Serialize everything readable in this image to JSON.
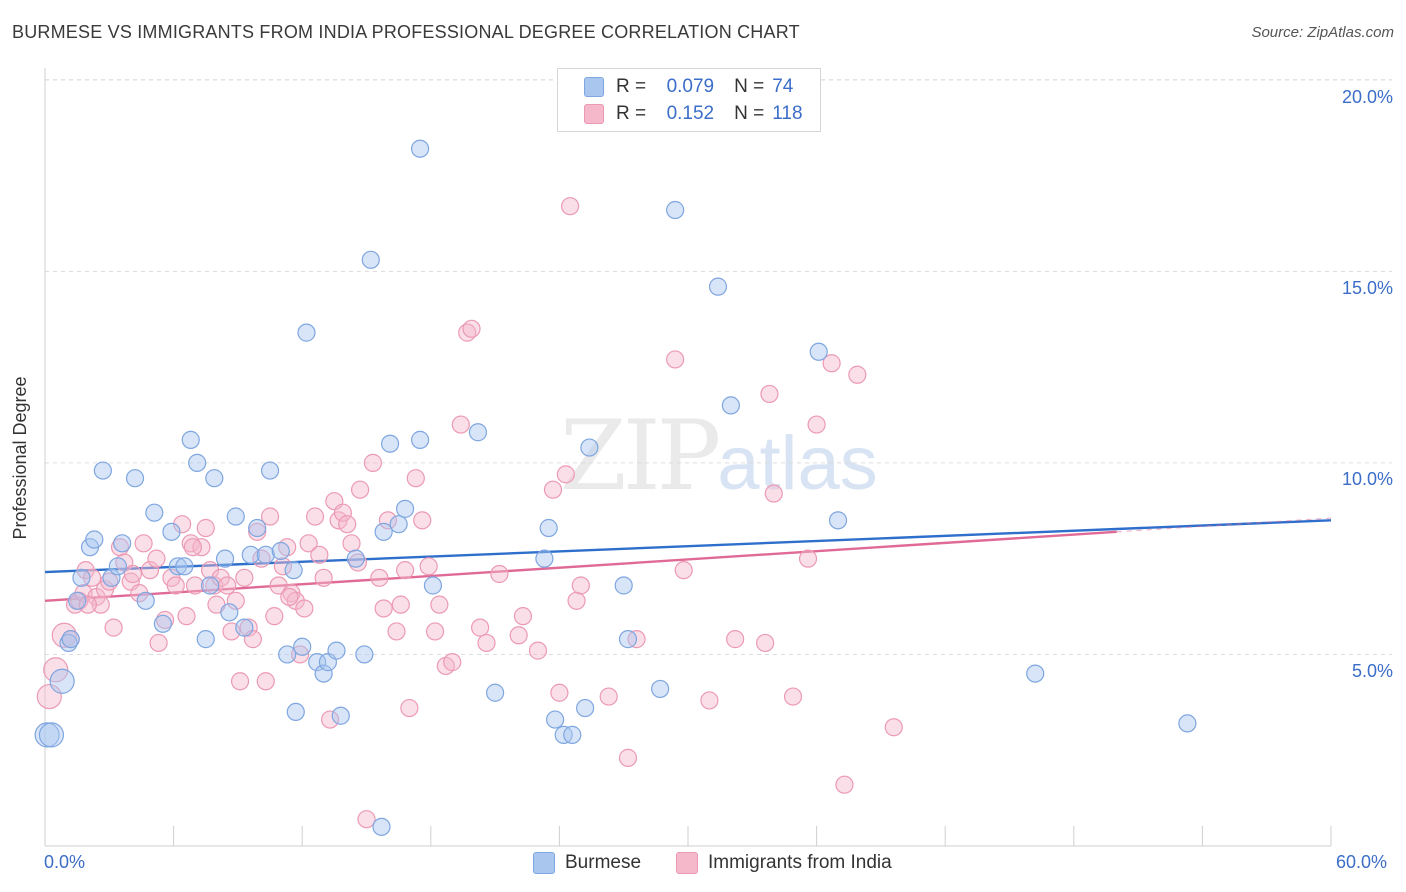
{
  "title": "BURMESE VS IMMIGRANTS FROM INDIA PROFESSIONAL DEGREE CORRELATION CHART",
  "source": "Source: ZipAtlas.com",
  "watermark": {
    "zip": "ZIP",
    "atlas": "atlas"
  },
  "colors": {
    "burmese_fill": "#a9c6ef",
    "burmese_stroke": "#7ea6e0",
    "burmese_line": "#2f6fcc",
    "india_fill": "#f5b8cb",
    "india_stroke": "#ec9ab4",
    "india_line": "#e06a96",
    "tick_text": "#3b6dc9",
    "grid": "#dcdcdc"
  },
  "legend": {
    "rows": [
      {
        "r_label": "R =",
        "r_value": "0.079",
        "n_label": "N =",
        "n_value": "74"
      },
      {
        "r_label": "R =",
        "r_value": "0.152",
        "n_label": "N =",
        "n_value": "118"
      }
    ]
  },
  "bottom_legend": {
    "burmese": "Burmese",
    "india": "Immigrants from India"
  },
  "chart_data": {
    "type": "scatter",
    "title": "BURMESE VS IMMIGRANTS FROM INDIA PROFESSIONAL DEGREE CORRELATION CHART",
    "xlabel": "",
    "ylabel": "Professional Degree",
    "xlim": [
      0,
      60
    ],
    "ylim": [
      0,
      20.5
    ],
    "x_tick_labels": [
      "0.0%",
      "60.0%"
    ],
    "y_ticks": [
      5,
      10,
      15,
      20
    ],
    "y_tick_labels": [
      "5.0%",
      "10.0%",
      "15.0%",
      "20.0%"
    ],
    "grid": "horizontal dashed",
    "legend_position": "top-center",
    "series": [
      {
        "name": "Burmese",
        "R": 0.079,
        "N": 74,
        "trend": {
          "x": [
            0,
            60
          ],
          "y": [
            7.15,
            8.5
          ]
        },
        "points": [
          [
            0.1,
            2.9
          ],
          [
            0.8,
            4.3
          ],
          [
            1.1,
            5.3
          ],
          [
            1.2,
            5.4
          ],
          [
            1.5,
            6.4
          ],
          [
            1.7,
            7.0
          ],
          [
            2.1,
            7.8
          ],
          [
            2.3,
            8.0
          ],
          [
            2.7,
            9.8
          ],
          [
            3.1,
            7.0
          ],
          [
            3.4,
            7.3
          ],
          [
            3.6,
            7.9
          ],
          [
            4.2,
            9.6
          ],
          [
            4.7,
            6.4
          ],
          [
            5.1,
            8.7
          ],
          [
            5.5,
            5.8
          ],
          [
            5.9,
            8.2
          ],
          [
            6.2,
            7.3
          ],
          [
            6.5,
            7.3
          ],
          [
            6.8,
            10.6
          ],
          [
            7.1,
            10.0
          ],
          [
            7.5,
            5.4
          ],
          [
            7.7,
            6.8
          ],
          [
            7.9,
            9.6
          ],
          [
            8.4,
            7.5
          ],
          [
            8.6,
            6.1
          ],
          [
            8.9,
            8.6
          ],
          [
            9.3,
            5.7
          ],
          [
            9.6,
            7.6
          ],
          [
            9.9,
            8.3
          ],
          [
            10.3,
            7.6
          ],
          [
            10.5,
            9.8
          ],
          [
            11.0,
            7.7
          ],
          [
            11.3,
            5.0
          ],
          [
            11.6,
            7.2
          ],
          [
            11.7,
            3.5
          ],
          [
            12.0,
            5.2
          ],
          [
            12.2,
            13.4
          ],
          [
            12.7,
            4.8
          ],
          [
            13.0,
            4.5
          ],
          [
            13.2,
            4.8
          ],
          [
            13.6,
            5.1
          ],
          [
            13.8,
            3.4
          ],
          [
            14.5,
            7.5
          ],
          [
            14.9,
            5.0
          ],
          [
            15.2,
            15.3
          ],
          [
            15.7,
            0.5
          ],
          [
            15.8,
            8.2
          ],
          [
            16.1,
            10.5
          ],
          [
            16.5,
            8.4
          ],
          [
            16.8,
            8.8
          ],
          [
            17.5,
            10.6
          ],
          [
            17.5,
            18.2
          ],
          [
            18.1,
            6.8
          ],
          [
            20.2,
            10.8
          ],
          [
            21.0,
            4.0
          ],
          [
            23.3,
            7.5
          ],
          [
            23.5,
            8.3
          ],
          [
            23.8,
            3.3
          ],
          [
            24.2,
            2.9
          ],
          [
            24.6,
            2.9
          ],
          [
            25.2,
            3.6
          ],
          [
            25.4,
            10.4
          ],
          [
            27.0,
            6.8
          ],
          [
            27.2,
            5.4
          ],
          [
            28.7,
            4.1
          ],
          [
            29.4,
            16.6
          ],
          [
            31.4,
            14.6
          ],
          [
            32.0,
            11.5
          ],
          [
            36.1,
            12.9
          ],
          [
            37.0,
            8.5
          ],
          [
            46.2,
            4.5
          ],
          [
            53.3,
            3.2
          ],
          [
            0.3,
            2.9
          ]
        ]
      },
      {
        "name": "Immigrants from India",
        "R": 0.152,
        "N": 118,
        "trend": {
          "x": [
            0,
            50
          ],
          "y": [
            6.4,
            8.2
          ]
        },
        "points": [
          [
            0.2,
            3.9
          ],
          [
            0.5,
            4.6
          ],
          [
            0.9,
            5.5
          ],
          [
            1.2,
            5.4
          ],
          [
            1.4,
            6.3
          ],
          [
            1.6,
            6.4
          ],
          [
            1.8,
            6.6
          ],
          [
            1.9,
            7.2
          ],
          [
            2.2,
            7.0
          ],
          [
            2.4,
            6.5
          ],
          [
            2.6,
            6.3
          ],
          [
            2.8,
            6.7
          ],
          [
            3.0,
            6.9
          ],
          [
            3.2,
            5.7
          ],
          [
            3.5,
            7.8
          ],
          [
            3.7,
            7.4
          ],
          [
            4.0,
            6.9
          ],
          [
            4.1,
            7.1
          ],
          [
            4.4,
            6.6
          ],
          [
            4.6,
            7.9
          ],
          [
            4.9,
            7.2
          ],
          [
            5.2,
            7.5
          ],
          [
            5.3,
            5.3
          ],
          [
            5.6,
            5.9
          ],
          [
            5.9,
            7.0
          ],
          [
            6.1,
            6.8
          ],
          [
            6.4,
            8.4
          ],
          [
            6.6,
            6.0
          ],
          [
            6.8,
            7.9
          ],
          [
            7.0,
            6.8
          ],
          [
            7.3,
            7.8
          ],
          [
            7.5,
            8.3
          ],
          [
            7.7,
            7.2
          ],
          [
            7.9,
            6.8
          ],
          [
            8.0,
            6.3
          ],
          [
            8.2,
            7.0
          ],
          [
            8.5,
            6.8
          ],
          [
            8.7,
            5.6
          ],
          [
            8.9,
            6.4
          ],
          [
            9.1,
            4.3
          ],
          [
            9.3,
            7.0
          ],
          [
            9.5,
            5.7
          ],
          [
            9.7,
            5.4
          ],
          [
            9.9,
            8.2
          ],
          [
            10.1,
            7.5
          ],
          [
            10.3,
            4.3
          ],
          [
            10.5,
            8.6
          ],
          [
            10.7,
            6.0
          ],
          [
            10.9,
            6.8
          ],
          [
            11.1,
            7.3
          ],
          [
            11.3,
            7.8
          ],
          [
            11.5,
            6.6
          ],
          [
            11.7,
            6.4
          ],
          [
            11.9,
            5.0
          ],
          [
            12.1,
            6.2
          ],
          [
            12.3,
            7.9
          ],
          [
            12.6,
            8.6
          ],
          [
            12.8,
            7.6
          ],
          [
            13.0,
            7.0
          ],
          [
            13.3,
            3.3
          ],
          [
            13.5,
            9.0
          ],
          [
            13.7,
            8.5
          ],
          [
            13.9,
            8.7
          ],
          [
            14.1,
            8.4
          ],
          [
            14.3,
            7.9
          ],
          [
            14.7,
            9.3
          ],
          [
            15.0,
            0.7
          ],
          [
            15.3,
            10.0
          ],
          [
            15.6,
            7.0
          ],
          [
            15.8,
            6.2
          ],
          [
            16.0,
            8.5
          ],
          [
            16.4,
            5.6
          ],
          [
            16.6,
            6.3
          ],
          [
            16.8,
            7.2
          ],
          [
            17.0,
            3.6
          ],
          [
            17.3,
            9.6
          ],
          [
            17.6,
            8.5
          ],
          [
            17.9,
            7.3
          ],
          [
            18.2,
            5.6
          ],
          [
            18.4,
            6.3
          ],
          [
            18.7,
            4.7
          ],
          [
            19.0,
            4.8
          ],
          [
            19.4,
            11.0
          ],
          [
            19.7,
            13.4
          ],
          [
            19.9,
            13.5
          ],
          [
            20.3,
            5.7
          ],
          [
            20.6,
            5.3
          ],
          [
            21.2,
            7.1
          ],
          [
            22.1,
            5.5
          ],
          [
            22.3,
            6.0
          ],
          [
            23.0,
            5.1
          ],
          [
            23.7,
            9.3
          ],
          [
            24.0,
            4.0
          ],
          [
            24.3,
            9.7
          ],
          [
            24.5,
            16.7
          ],
          [
            24.8,
            6.4
          ],
          [
            25.0,
            6.8
          ],
          [
            26.3,
            3.9
          ],
          [
            27.2,
            2.3
          ],
          [
            27.6,
            5.4
          ],
          [
            29.4,
            12.7
          ],
          [
            29.8,
            7.2
          ],
          [
            31.0,
            3.8
          ],
          [
            32.2,
            5.4
          ],
          [
            33.6,
            5.3
          ],
          [
            33.8,
            11.8
          ],
          [
            34.0,
            9.2
          ],
          [
            34.9,
            3.9
          ],
          [
            35.6,
            7.5
          ],
          [
            36.0,
            11.0
          ],
          [
            36.7,
            12.6
          ],
          [
            37.3,
            1.6
          ],
          [
            37.9,
            12.3
          ],
          [
            39.6,
            3.1
          ],
          [
            2.0,
            6.3
          ],
          [
            6.9,
            7.8
          ],
          [
            11.4,
            6.5
          ],
          [
            14.6,
            7.4
          ]
        ]
      }
    ]
  }
}
